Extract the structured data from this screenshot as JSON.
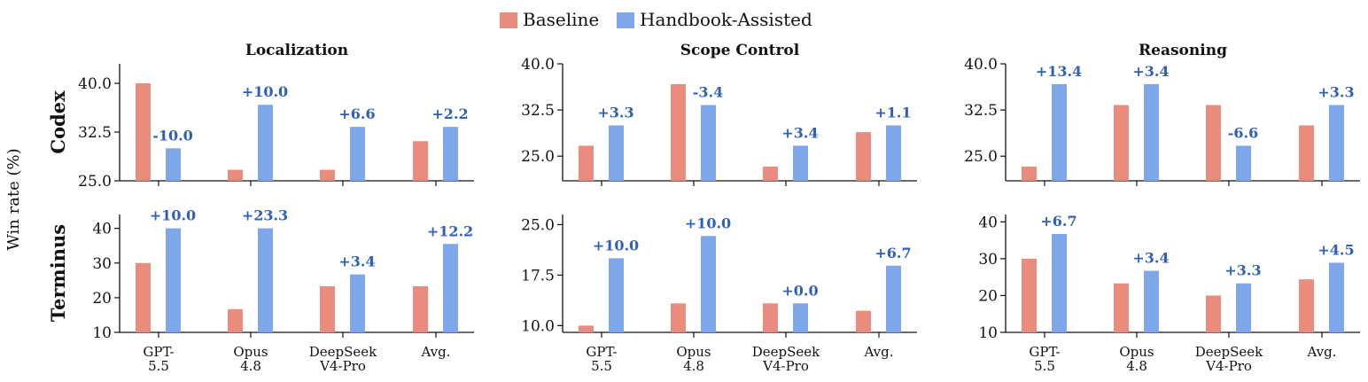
{
  "legend": [
    {
      "name": "Baseline",
      "color": "#e98c7e"
    },
    {
      "name": "Handbook-Assisted",
      "color": "#7ea6ea"
    }
  ],
  "y_axis_label": "Win rate (%)",
  "row_labels": [
    "Codex",
    "Terminus"
  ],
  "column_titles": [
    "Localization",
    "Scope Control",
    "Reasoning"
  ],
  "categories": [
    [
      "GPT-",
      "5.5"
    ],
    [
      "Opus",
      "4.8"
    ],
    [
      "DeepSeek",
      "V4-Pro"
    ],
    [
      "Avg."
    ]
  ],
  "chart_data": [
    {
      "type": "bar",
      "title": "Localization",
      "row": "Codex",
      "ylim": [
        25,
        43
      ],
      "yticks": [
        "25.0",
        "32.5",
        "40.0"
      ],
      "series": [
        {
          "name": "Baseline",
          "values": [
            40.0,
            26.7,
            26.7,
            31.1
          ]
        },
        {
          "name": "Handbook-Assisted",
          "values": [
            30.0,
            36.7,
            33.3,
            33.3
          ]
        }
      ],
      "annotations": [
        "-10.0",
        "+10.0",
        "+6.6",
        "+2.2"
      ]
    },
    {
      "type": "bar",
      "title": "Scope Control",
      "row": "Codex",
      "ylim": [
        21,
        40
      ],
      "yticks": [
        "25.0",
        "32.5",
        "40.0"
      ],
      "series": [
        {
          "name": "Baseline",
          "values": [
            26.7,
            36.7,
            23.3,
            28.9
          ]
        },
        {
          "name": "Handbook-Assisted",
          "values": [
            30.0,
            33.3,
            26.7,
            30.0
          ]
        }
      ],
      "annotations": [
        "+3.3",
        "-3.4",
        "+3.4",
        "+1.1"
      ]
    },
    {
      "type": "bar",
      "title": "Reasoning",
      "row": "Codex",
      "ylim": [
        21,
        40
      ],
      "yticks": [
        "25.0",
        "32.5",
        "40.0"
      ],
      "series": [
        {
          "name": "Baseline",
          "values": [
            23.3,
            33.3,
            33.3,
            30.0
          ]
        },
        {
          "name": "Handbook-Assisted",
          "values": [
            36.7,
            36.7,
            26.7,
            33.3
          ]
        }
      ],
      "annotations": [
        "+13.4",
        "+3.4",
        "-6.6",
        "+3.3"
      ]
    },
    {
      "type": "bar",
      "title": "Localization",
      "row": "Terminus",
      "ylim": [
        10,
        44
      ],
      "yticks": [
        "10",
        "20",
        "30",
        "40"
      ],
      "series": [
        {
          "name": "Baseline",
          "values": [
            30.0,
            16.7,
            23.3,
            23.3
          ]
        },
        {
          "name": "Handbook-Assisted",
          "values": [
            40.0,
            40.0,
            26.7,
            35.5
          ]
        }
      ],
      "annotations": [
        "+10.0",
        "+23.3",
        "+3.4",
        "+12.2"
      ]
    },
    {
      "type": "bar",
      "title": "Scope Control",
      "row": "Terminus",
      "ylim": [
        9,
        26.5
      ],
      "yticks": [
        "10.0",
        "17.5",
        "25.0"
      ],
      "series": [
        {
          "name": "Baseline",
          "values": [
            10.0,
            13.3,
            13.3,
            12.2
          ]
        },
        {
          "name": "Handbook-Assisted",
          "values": [
            20.0,
            23.3,
            13.3,
            18.9
          ]
        }
      ],
      "annotations": [
        "+10.0",
        "+10.0",
        "+0.0",
        "+6.7"
      ]
    },
    {
      "type": "bar",
      "title": "Reasoning",
      "row": "Terminus",
      "ylim": [
        10,
        42
      ],
      "yticks": [
        "10",
        "20",
        "30",
        "40"
      ],
      "series": [
        {
          "name": "Baseline",
          "values": [
            30.0,
            23.3,
            20.0,
            24.4
          ]
        },
        {
          "name": "Handbook-Assisted",
          "values": [
            36.7,
            26.7,
            23.3,
            28.9
          ]
        }
      ],
      "annotations": [
        "+6.7",
        "+3.4",
        "+3.3",
        "+4.5"
      ]
    }
  ]
}
